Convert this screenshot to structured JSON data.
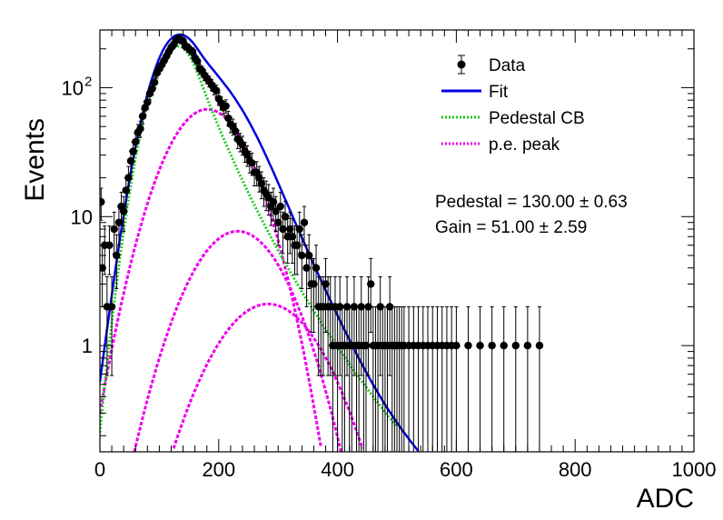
{
  "chart_data": {
    "type": "scatter",
    "title": "",
    "xlabel": "ADC",
    "ylabel": "Events",
    "xlim": [
      0,
      1000
    ],
    "ylim": [
      0.15,
      280
    ],
    "yscale": "log",
    "grid": false,
    "legend_position": "top-right",
    "x_ticks": [
      {
        "value": 0,
        "label": "0"
      },
      {
        "value": 200,
        "label": "200"
      },
      {
        "value": 400,
        "label": "400"
      },
      {
        "value": 600,
        "label": "600"
      },
      {
        "value": 800,
        "label": "800"
      },
      {
        "value": 1000,
        "label": "1000"
      }
    ],
    "y_ticks": [
      {
        "value": 1,
        "label": "1"
      },
      {
        "value": 10,
        "label": "10"
      },
      {
        "value": 100,
        "label": "10",
        "sup": "2"
      }
    ],
    "legend": [
      {
        "label": "Data",
        "style": "marker",
        "color": "#000000"
      },
      {
        "label": "Fit",
        "style": "solid",
        "color": "#0000dd"
      },
      {
        "label": "Pedestal CB",
        "style": "dotted",
        "color": "#22cc22"
      },
      {
        "label": "p.e. peak",
        "style": "dotted",
        "color": "#ee00ee"
      }
    ],
    "stats": [
      {
        "text": "Pedestal = 130.00 ± 0.63"
      },
      {
        "text": "Gain = 51.00 ± 2.59"
      }
    ],
    "fit_model": {
      "pedestal": {
        "mean": 130.0,
        "sigma": 35,
        "amplitude": 210,
        "tail_alpha": 1.0,
        "tail_n": 8
      },
      "gain": 51.0,
      "pe_peaks": [
        {
          "n": 1,
          "mean": 181,
          "sigma": 55,
          "amplitude": 68
        },
        {
          "n": 2,
          "mean": 232,
          "sigma": 62,
          "amplitude": 7.7
        },
        {
          "n": 3,
          "mean": 283,
          "sigma": 70,
          "amplitude": 2.1
        }
      ]
    },
    "series": [
      {
        "name": "Data",
        "type": "scatter",
        "color": "#000000",
        "points": [
          [
            2,
            13
          ],
          [
            4,
            4
          ],
          [
            8,
            6
          ],
          [
            12,
            2
          ],
          [
            16,
            6
          ],
          [
            20,
            2
          ],
          [
            24,
            8
          ],
          [
            28,
            5
          ],
          [
            32,
            9
          ],
          [
            36,
            12
          ],
          [
            40,
            11
          ],
          [
            44,
            16
          ],
          [
            48,
            20
          ],
          [
            52,
            27
          ],
          [
            56,
            32
          ],
          [
            60,
            38
          ],
          [
            64,
            45
          ],
          [
            68,
            48
          ],
          [
            72,
            60
          ],
          [
            76,
            70
          ],
          [
            80,
            77
          ],
          [
            84,
            90
          ],
          [
            88,
            98
          ],
          [
            92,
            110
          ],
          [
            96,
            130
          ],
          [
            100,
            140
          ],
          [
            104,
            150
          ],
          [
            108,
            162
          ],
          [
            112,
            175
          ],
          [
            116,
            190
          ],
          [
            120,
            205
          ],
          [
            124,
            215
          ],
          [
            128,
            232
          ],
          [
            132,
            240
          ],
          [
            136,
            235
          ],
          [
            140,
            230
          ],
          [
            144,
            210
          ],
          [
            148,
            205
          ],
          [
            152,
            195
          ],
          [
            156,
            190
          ],
          [
            160,
            170
          ],
          [
            164,
            160
          ],
          [
            168,
            140
          ],
          [
            172,
            135
          ],
          [
            176,
            125
          ],
          [
            180,
            118
          ],
          [
            184,
            112
          ],
          [
            188,
            105
          ],
          [
            192,
            98
          ],
          [
            196,
            95
          ],
          [
            200,
            82
          ],
          [
            204,
            76
          ],
          [
            208,
            70
          ],
          [
            212,
            72
          ],
          [
            216,
            58
          ],
          [
            220,
            52
          ],
          [
            224,
            50
          ],
          [
            228,
            46
          ],
          [
            232,
            40
          ],
          [
            236,
            38
          ],
          [
            240,
            36
          ],
          [
            244,
            32
          ],
          [
            248,
            30
          ],
          [
            252,
            27
          ],
          [
            256,
            26
          ],
          [
            260,
            22
          ],
          [
            264,
            22
          ],
          [
            268,
            20
          ],
          [
            272,
            18
          ],
          [
            276,
            16
          ],
          [
            280,
            15
          ],
          [
            284,
            14
          ],
          [
            288,
            12
          ],
          [
            292,
            13
          ],
          [
            296,
            11
          ],
          [
            300,
            9
          ],
          [
            304,
            12
          ],
          [
            308,
            8
          ],
          [
            312,
            10
          ],
          [
            316,
            7
          ],
          [
            320,
            8
          ],
          [
            324,
            7
          ],
          [
            328,
            6
          ],
          [
            332,
            6
          ],
          [
            336,
            8
          ],
          [
            340,
            5
          ],
          [
            344,
            9
          ],
          [
            348,
            4
          ],
          [
            352,
            5
          ],
          [
            356,
            3
          ],
          [
            360,
            3
          ],
          [
            364,
            4
          ],
          [
            368,
            2
          ],
          [
            372,
            2
          ],
          [
            376,
            2
          ],
          [
            380,
            3
          ],
          [
            384,
            2
          ],
          [
            388,
            2
          ],
          [
            392,
            1
          ],
          [
            396,
            2
          ],
          [
            400,
            1
          ],
          [
            404,
            2
          ],
          [
            408,
            1
          ],
          [
            412,
            1
          ],
          [
            416,
            2
          ],
          [
            420,
            1
          ],
          [
            424,
            1
          ],
          [
            428,
            2
          ],
          [
            432,
            1
          ],
          [
            436,
            1
          ],
          [
            440,
            2
          ],
          [
            444,
            1
          ],
          [
            448,
            1
          ],
          [
            452,
            2
          ],
          [
            456,
            3
          ],
          [
            460,
            1
          ],
          [
            464,
            1
          ],
          [
            468,
            1
          ],
          [
            472,
            2
          ],
          [
            476,
            1
          ],
          [
            480,
            1
          ],
          [
            484,
            1
          ],
          [
            488,
            2
          ],
          [
            492,
            1
          ],
          [
            496,
            1
          ],
          [
            500,
            1
          ],
          [
            504,
            1
          ],
          [
            508,
            1
          ],
          [
            512,
            1
          ],
          [
            520,
            1
          ],
          [
            528,
            1
          ],
          [
            536,
            1
          ],
          [
            544,
            1
          ],
          [
            552,
            1
          ],
          [
            560,
            1
          ],
          [
            568,
            1
          ],
          [
            576,
            1
          ],
          [
            584,
            1
          ],
          [
            592,
            1
          ],
          [
            600,
            1
          ],
          [
            620,
            1
          ],
          [
            640,
            1
          ],
          [
            660,
            1
          ],
          [
            680,
            1
          ],
          [
            700,
            1
          ],
          [
            720,
            1
          ],
          [
            740,
            1
          ]
        ]
      },
      {
        "name": "Fit",
        "type": "line",
        "color": "#0000dd"
      },
      {
        "name": "Pedestal CB",
        "type": "line",
        "color": "#22cc22"
      },
      {
        "name": "p.e. peak",
        "type": "line",
        "color": "#ee00ee"
      }
    ]
  }
}
